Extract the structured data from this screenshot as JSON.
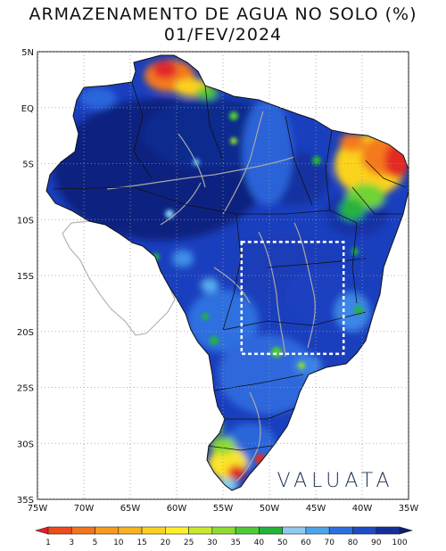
{
  "title": {
    "line1": "ARMAZENAMENTO DE AGUA NO SOLO (%)",
    "line2": "01/FEV/2024"
  },
  "map": {
    "lat_ticks": [
      "5N",
      "EQ",
      "5S",
      "10S",
      "15S",
      "20S",
      "25S",
      "30S",
      "35S"
    ],
    "lon_ticks": [
      "75W",
      "70W",
      "65W",
      "60W",
      "55W",
      "50W",
      "45W",
      "40W",
      "35W"
    ],
    "lat_range": [
      -35,
      5
    ],
    "lon_range": [
      -75,
      -35
    ],
    "grid": true,
    "highlight_box": {
      "lon": [
        -53,
        -42
      ],
      "lat": [
        -22,
        -12
      ]
    }
  },
  "colorbar": {
    "labels": [
      "1",
      "3",
      "5",
      "10",
      "15",
      "20",
      "25",
      "30",
      "35",
      "40",
      "50",
      "60",
      "70",
      "80",
      "90",
      "100"
    ],
    "colors": [
      "#e0202a",
      "#f04a1a",
      "#f5751a",
      "#f89a1c",
      "#f9b31d",
      "#fbd21e",
      "#fcf02a",
      "#c9e92a",
      "#8ddd30",
      "#4fcb35",
      "#23b53a",
      "#8ec9f0",
      "#4aa5ea",
      "#2b6fe0",
      "#1e4bc8",
      "#142f9c",
      "#0b1f6e"
    ]
  },
  "watermark": "VALUATA"
}
